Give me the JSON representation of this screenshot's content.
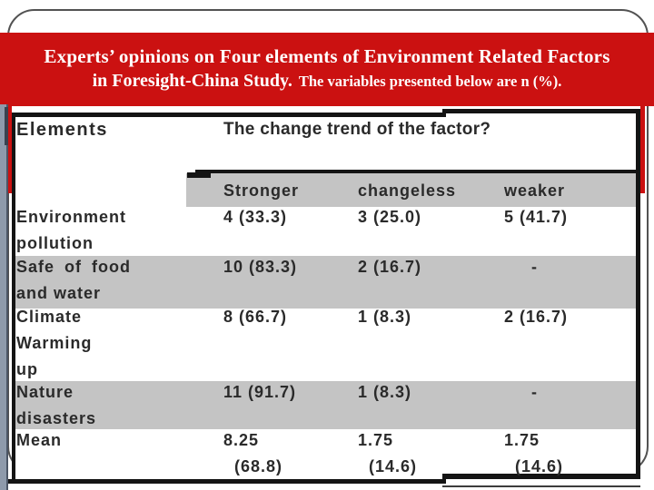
{
  "slide": {
    "title": {
      "line1": "Experts’ opinions on Four elements of Environment Related Factors",
      "line2_main": "in Foresight-China Study.",
      "line2_sub": "The variables presented below are n (%)."
    },
    "colors": {
      "banner_red": "#cb1111",
      "row_gray": "#c4c4c4",
      "edge_stripe": "#8e9aab",
      "table_border": "#141414",
      "table_text": "#2a2a2a",
      "title_text": "#ffffff"
    }
  },
  "table": {
    "corner_header": "Elements",
    "span_header": "The change trend of the factor?",
    "sub_headers": [
      "Stronger",
      "changeless",
      "weaker"
    ],
    "rows": [
      {
        "label_lines": [
          "Environment",
          "pollution"
        ],
        "cells": [
          "4 (33.3)",
          "3 (25.0)",
          "5 (41.7)"
        ]
      },
      {
        "label_lines": [
          "Safe of food",
          "and water"
        ],
        "cells": [
          "10 (83.3)",
          "2 (16.7)",
          "-"
        ]
      },
      {
        "label_lines": [
          "Climate",
          "Warming",
          "up"
        ],
        "cells": [
          "8 (66.7)",
          "1 (8.3)",
          "2 (16.7)"
        ]
      },
      {
        "label_lines": [
          "Nature",
          "disasters"
        ],
        "cells": [
          "11 (91.7)",
          "1 (8.3)",
          "-"
        ]
      },
      {
        "label_lines": [
          "Mean"
        ],
        "cells_lines": [
          [
            "8.25",
            "(68.8)"
          ],
          [
            "1.75",
            "(14.6)"
          ],
          [
            "1.75",
            "(14.6)"
          ]
        ]
      }
    ]
  }
}
